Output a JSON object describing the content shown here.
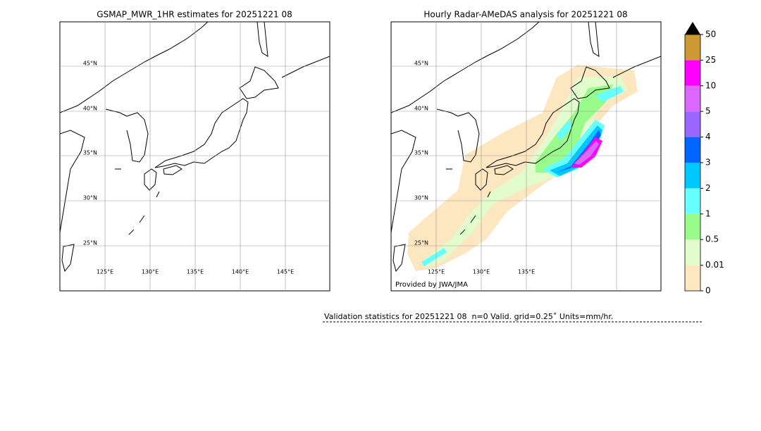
{
  "panels": [
    {
      "title": "GSMAP_MWR_1HR estimates for 20251221 08",
      "lat_labels": [
        "45°N",
        "40°N",
        "35°N",
        "30°N",
        "25°N"
      ],
      "lon_labels": [
        "125°E",
        "130°E",
        "135°E",
        "140°E",
        "145°E"
      ]
    },
    {
      "title": "Hourly Radar-AMeDAS analysis for 20251221 08",
      "lat_labels": [
        "45°N",
        "40°N",
        "35°N",
        "30°N",
        "25°N"
      ],
      "lon_labels": [
        "125°E",
        "130°E",
        "135°E"
      ],
      "credit": "Provided by JWA/JMA"
    }
  ],
  "colorbar": {
    "ticks": [
      0,
      0.01,
      0.5,
      1,
      2,
      3,
      4,
      5,
      10,
      25,
      50
    ],
    "colors": [
      "#fde7c1",
      "#e2fbcc",
      "#99fb8a",
      "#66fffe",
      "#00c8ff",
      "#0066ff",
      "#9966ff",
      "#dd66ff",
      "#ff00ff",
      "#cc9933"
    ]
  },
  "validation": "Validation statistics for 20251221 08  n=0 Valid. grid=0.25˚ Units=mm/hr."
}
